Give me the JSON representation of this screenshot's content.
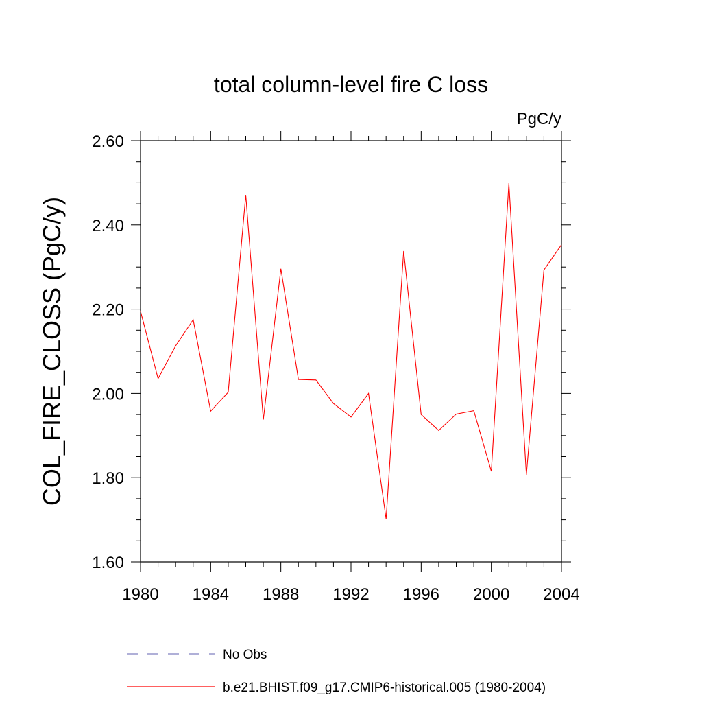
{
  "chart_data": {
    "type": "line",
    "title": "total column-level fire C loss",
    "units": "PgC/y",
    "xlabel": "",
    "ylabel": "COL_FIRE_CLOSS  (PgC/y)",
    "xlim": [
      1980,
      2004
    ],
    "ylim": [
      1.6,
      2.6
    ],
    "x_ticks": [
      1980,
      1984,
      1988,
      1992,
      1996,
      2000,
      2004
    ],
    "x_tick_labels": [
      "1980",
      "1984",
      "1988",
      "1992",
      "1996",
      "2000",
      "2004"
    ],
    "y_ticks": [
      1.6,
      1.8,
      2.0,
      2.2,
      2.4,
      2.6
    ],
    "y_tick_labels": [
      "1.60",
      "1.80",
      "2.00",
      "2.20",
      "2.40",
      "2.60"
    ],
    "grid": false,
    "legend_position": "bottom",
    "series": [
      {
        "name": "b.e21.BHIST.f09_g17.CMIP6-historical.005 (1980-2004)",
        "color": "#ff0000",
        "style": "solid",
        "x": [
          1980,
          1981,
          1982,
          1983,
          1984,
          1985,
          1986,
          1987,
          1988,
          1989,
          1990,
          1991,
          1992,
          1993,
          1994,
          1995,
          1996,
          1997,
          1998,
          1999,
          2000,
          2001,
          2002,
          2003,
          2004
        ],
        "values": [
          2.195,
          2.035,
          2.113,
          2.175,
          1.958,
          2.003,
          2.471,
          1.938,
          2.296,
          2.033,
          2.032,
          1.976,
          1.944,
          2.0,
          1.702,
          2.338,
          1.95,
          1.912,
          1.951,
          1.959,
          1.815,
          2.499,
          1.807,
          2.293,
          2.353
        ]
      }
    ],
    "legend": [
      {
        "label": "No Obs",
        "color": "#8080c0",
        "style": "dashed"
      },
      {
        "label": "b.e21.BHIST.f09_g17.CMIP6-historical.005 (1980-2004)",
        "color": "#ff0000",
        "style": "solid"
      }
    ]
  }
}
